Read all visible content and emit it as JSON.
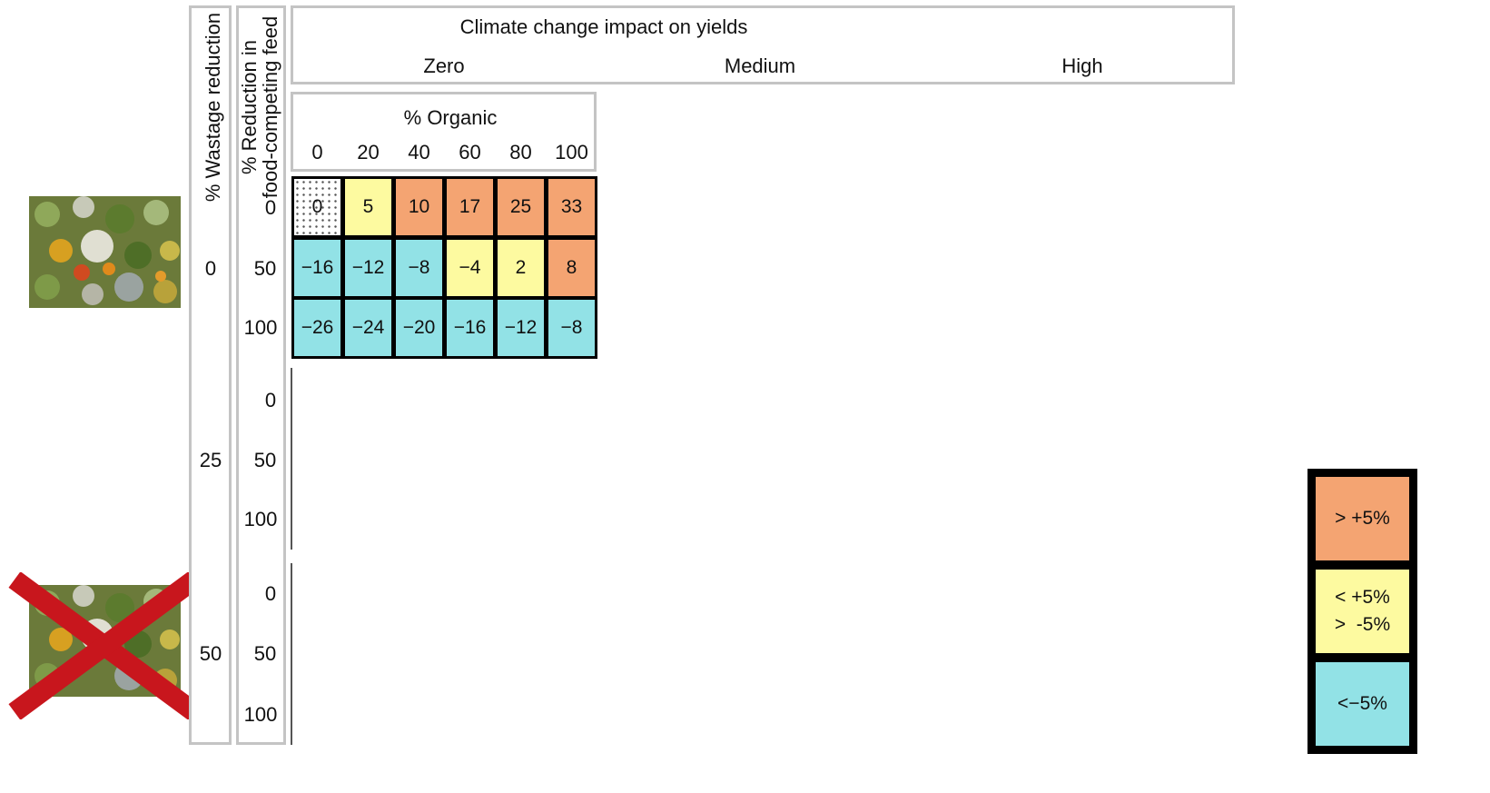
{
  "header": {
    "title": "Climate change impact on yields",
    "scenarios": [
      "Zero",
      "Medium",
      "High"
    ]
  },
  "left_axes": {
    "wastage_label": "% Wastage reduction",
    "feed_label_line1": "% Reduction in",
    "feed_label_line2": "food-competing feed",
    "wastage_values": [
      "0",
      "25",
      "50"
    ],
    "feed_values": [
      "0",
      "50",
      "100"
    ]
  },
  "organic": {
    "label": "% Organic",
    "values": [
      "0",
      "20",
      "40",
      "60",
      "80",
      "100"
    ]
  },
  "chart_data": {
    "type": "heatmap",
    "x_label": "% Organic",
    "x": [
      0,
      20,
      40,
      60,
      80,
      100
    ],
    "y_label": "% Reduction in food-competing feed",
    "y": [
      0,
      50,
      100
    ],
    "facet": {
      "wastage_reduction": "0",
      "climate_impact": "Zero"
    },
    "values": [
      [
        "0",
        "5",
        "10",
        "17",
        "25",
        "33"
      ],
      [
        "−16",
        "−12",
        "−8",
        "−4",
        "2",
        "8"
      ],
      [
        "−26",
        "−24",
        "−20",
        "−16",
        "−12",
        "−8"
      ]
    ],
    "numeric_values": [
      [
        0,
        5,
        10,
        17,
        25,
        33
      ],
      [
        -16,
        -12,
        -8,
        -4,
        2,
        8
      ],
      [
        -26,
        -24,
        -20,
        -16,
        -12,
        -8
      ]
    ],
    "colors": {
      "high": "#f4a472",
      "mid": "#fdfaa0",
      "low": "#92e2e6",
      "reference": "dotted"
    }
  },
  "legend": [
    {
      "text": "> +5%",
      "color": "#f4a472"
    },
    {
      "text": "< +5%\n>  -5%",
      "color": "#fdfaa0"
    },
    {
      "text": "<−5%",
      "color": "#92e2e6"
    }
  ]
}
